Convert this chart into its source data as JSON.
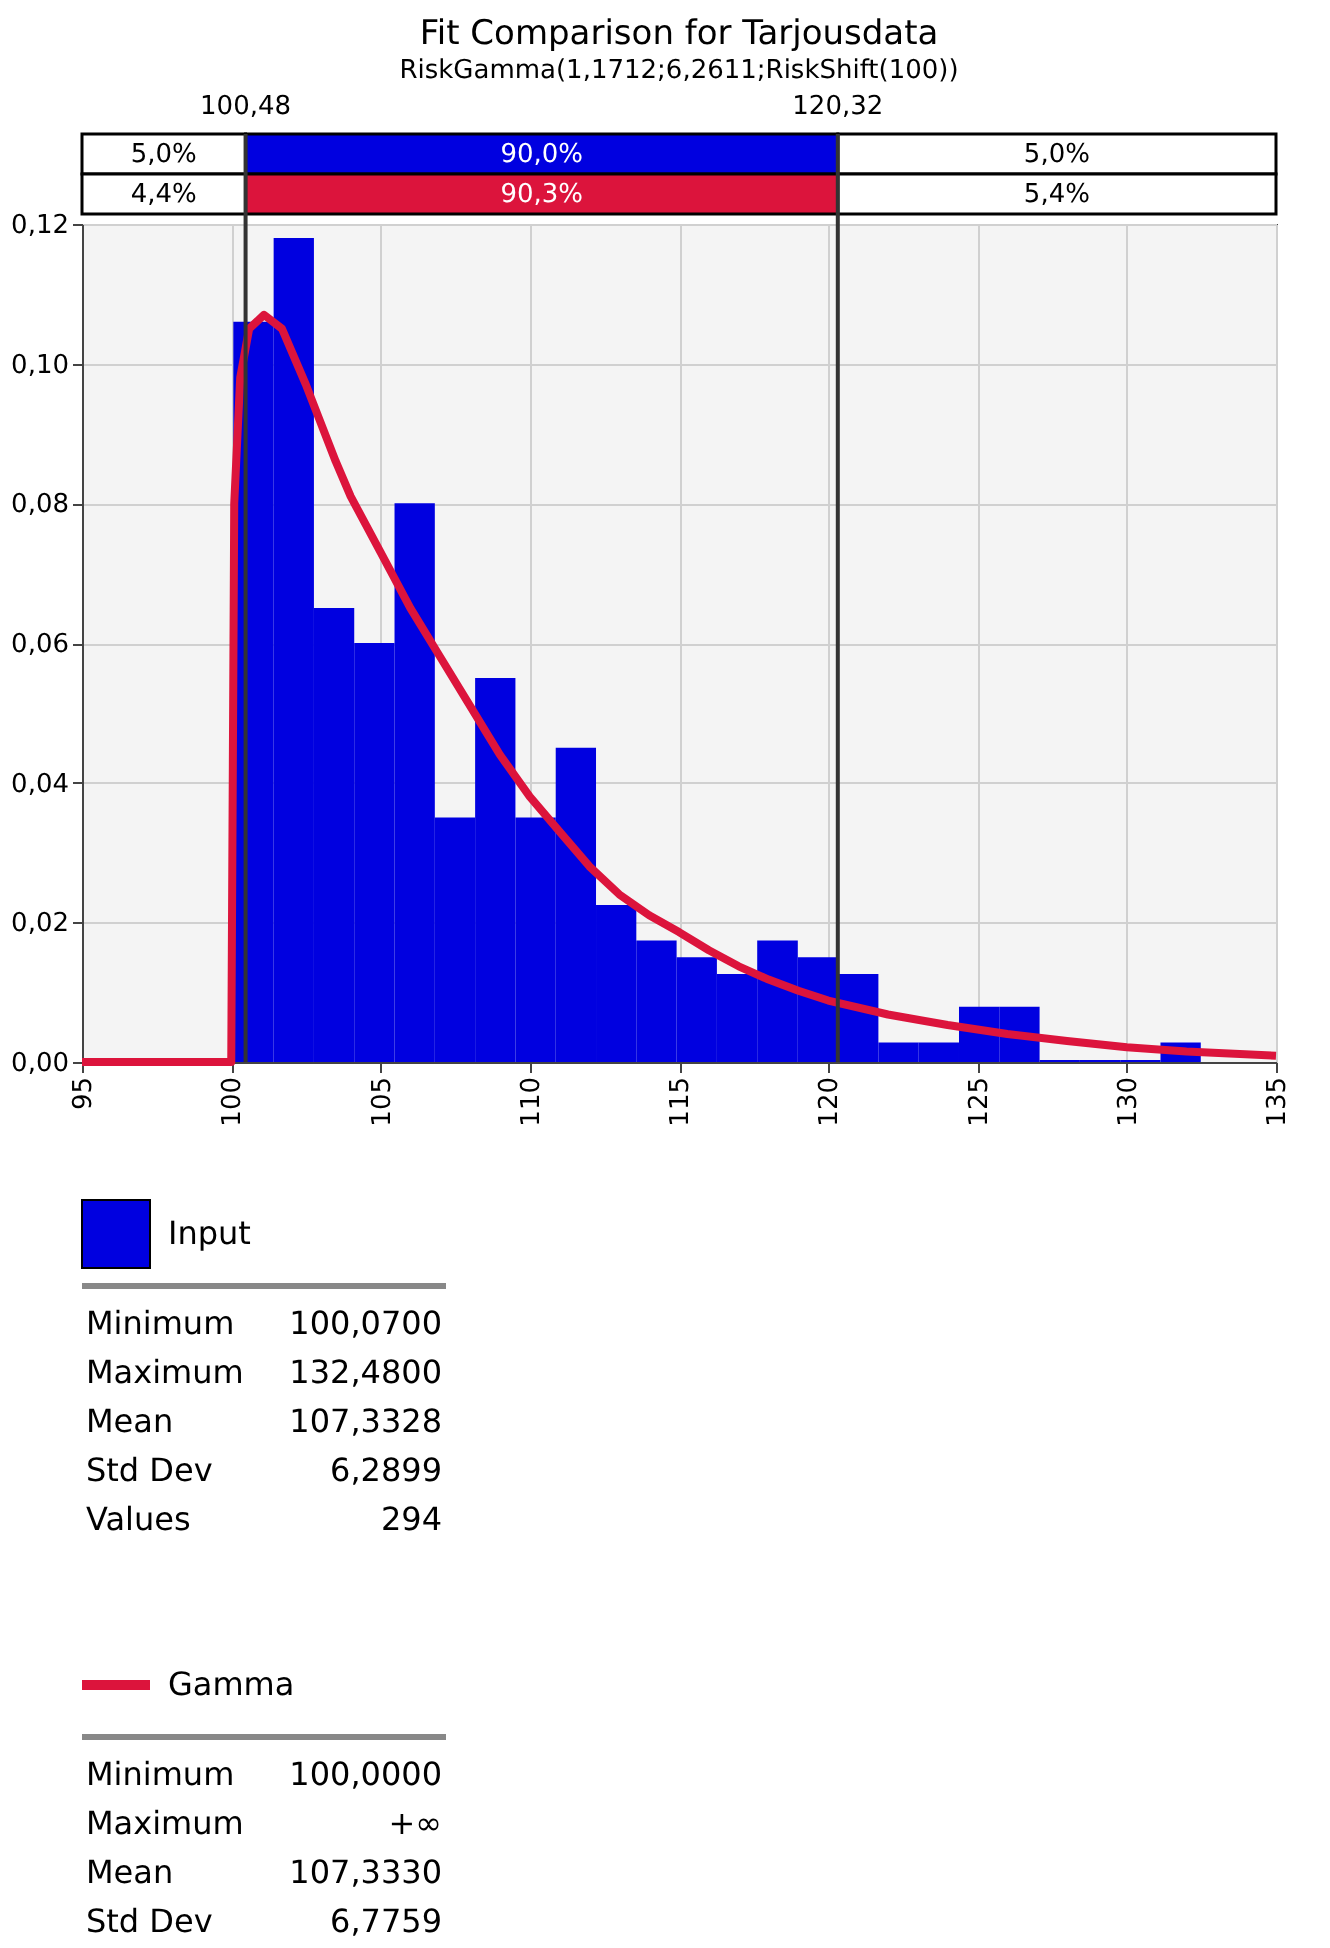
{
  "chart_data": {
    "type": "histogram",
    "title": "Fit Comparison for Tarjousdata",
    "subtitle": "RiskGamma(1,1712;6,2611;RiskShift(100))",
    "series": [
      {
        "name": "Input",
        "type": "histogram",
        "color": "#0000e0",
        "bins": [
          100.07,
          101.42,
          102.77,
          104.12,
          105.47,
          106.82,
          108.17,
          109.52,
          110.87,
          112.22,
          113.57,
          114.92,
          116.27,
          117.62,
          118.98,
          120.33,
          121.68,
          123.03,
          124.38,
          125.73,
          127.08,
          128.43,
          129.78,
          131.13,
          132.48
        ],
        "values": [
          0.106,
          0.118,
          0.065,
          0.06,
          0.08,
          0.035,
          0.055,
          0.035,
          0.045,
          0.0225,
          0.0174,
          0.015,
          0.0126,
          0.0174,
          0.015,
          0.0126,
          0.0028,
          0.0028,
          0.0079,
          0.0079,
          0.0003,
          0.0003,
          0.0003,
          0.0028
        ]
      },
      {
        "name": "Gamma",
        "type": "line",
        "color": "#dc143c",
        "x": [
          95,
          100,
          100.1,
          100.3,
          100.6,
          101.1,
          101.7,
          102.5,
          103.5,
          104,
          105,
          106,
          107,
          108,
          109,
          110,
          111,
          112,
          113,
          114,
          115,
          116,
          117,
          118,
          119,
          120,
          122,
          124,
          126,
          128,
          130,
          132,
          135
        ],
        "values": [
          0,
          0,
          0.08,
          0.098,
          0.105,
          0.107,
          0.105,
          0.097,
          0.086,
          0.081,
          0.073,
          0.065,
          0.058,
          0.051,
          0.044,
          0.038,
          0.033,
          0.028,
          0.024,
          0.021,
          0.0186,
          0.016,
          0.0137,
          0.0118,
          0.0102,
          0.0088,
          0.0068,
          0.0053,
          0.004,
          0.003,
          0.0021,
          0.0015,
          0.0009
        ]
      }
    ],
    "xlim": [
      95,
      135
    ],
    "xticks": [
      95,
      100,
      105,
      110,
      115,
      120,
      125,
      130,
      135
    ],
    "ylim": [
      0,
      0.12
    ],
    "yticks": [
      {
        "value": 0,
        "label": "0,00"
      },
      {
        "value": 0.02,
        "label": "0,02"
      },
      {
        "value": 0.04,
        "label": "0,04"
      },
      {
        "value": 0.06,
        "label": "0,06"
      },
      {
        "value": 0.08,
        "label": "0,08"
      },
      {
        "value": 0.1,
        "label": "0,10"
      },
      {
        "value": 0.12,
        "label": "0,12"
      }
    ],
    "ref_lines": [
      {
        "axis": "x",
        "value": 100.48,
        "label": "100,48",
        "color": "#333333"
      },
      {
        "axis": "x",
        "value": 120.32,
        "label": "120,32",
        "color": "#333333"
      }
    ],
    "annotations": [
      "5,0%",
      "90,0%",
      "5,0%",
      "4,4%",
      "90,3%",
      "5,4%",
      "Minimum",
      "100,0700",
      "Maximum",
      "132,4800",
      "Mean",
      "107,3328",
      "Std Dev",
      "6,2899",
      "Values",
      "294",
      "Minimum",
      "100,0000",
      "Maximum",
      "+∞",
      "Mean",
      "107,3330",
      "Std Dev",
      "6,7759"
    ],
    "grid": true,
    "legend": "bottom",
    "line_style": "solid",
    "marker": "none"
  }
}
